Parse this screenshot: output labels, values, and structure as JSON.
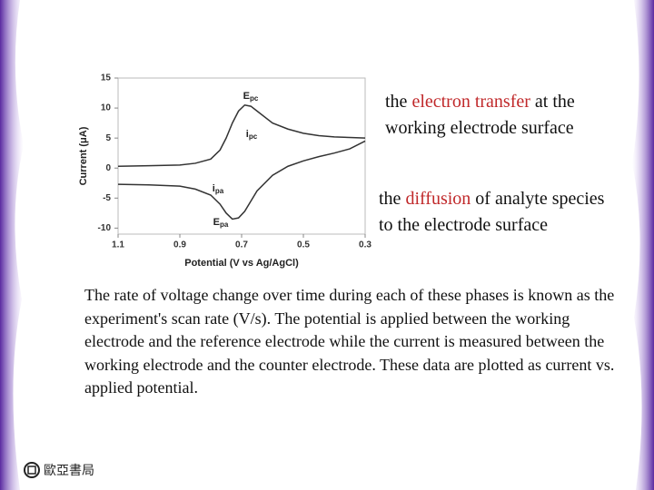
{
  "chart_data": {
    "type": "line",
    "xlabel": "Potential (V vs Ag/AgCl)",
    "ylabel": "Current (μA)",
    "x": [
      1.1,
      1.0,
      0.9,
      0.85,
      0.8,
      0.77,
      0.75,
      0.73,
      0.71,
      0.69,
      0.67,
      0.65,
      0.6,
      0.55,
      0.5,
      0.45,
      0.4,
      0.35,
      0.3
    ],
    "series": [
      {
        "color": "#333333",
        "values": [
          0.3,
          0.4,
          0.5,
          0.8,
          1.5,
          3,
          5,
          7.5,
          9.5,
          10.5,
          10.3,
          9.5,
          7.5,
          6.5,
          5.8,
          5.4,
          5.2,
          5.1,
          5
        ]
      },
      {
        "color": "#333333",
        "values": [
          -2.7,
          -2.8,
          -3,
          -3.5,
          -4.5,
          -6,
          -7.5,
          -8.5,
          -8.3,
          -7.2,
          -5.5,
          -3.8,
          -1.2,
          0.3,
          1.2,
          1.9,
          2.5,
          3.2,
          4.5
        ]
      }
    ],
    "xlim": [
      1.1,
      0.3
    ],
    "xticks": [
      1.1,
      0.9,
      0.7,
      0.5,
      0.3
    ],
    "ylim": [
      -11,
      15
    ],
    "yticks": [
      15,
      10,
      5,
      0,
      -5,
      -10
    ],
    "annotations": [
      {
        "text": "E",
        "sub": "pc"
      },
      {
        "text": "i",
        "sub": "pc"
      },
      {
        "text": "i",
        "sub": "pa"
      },
      {
        "text": "E",
        "sub": "pa"
      }
    ]
  },
  "notes": [
    {
      "parts": [
        "the ",
        "electron transfer",
        " at the"
      ],
      "line2": "working electrode surface"
    },
    {
      "parts": [
        "the ",
        "diffusion",
        " of analyte species"
      ],
      "line2": "to the electrode surface"
    }
  ],
  "paragraph": "The rate of voltage change over time during each of these phases is known as the experiment's scan rate (V/s). The potential is applied between the working electrode and the reference electrode while the current is measured between the working electrode and the counter electrode. These data are plotted as current vs. applied potential.",
  "logo": "歐亞書局"
}
